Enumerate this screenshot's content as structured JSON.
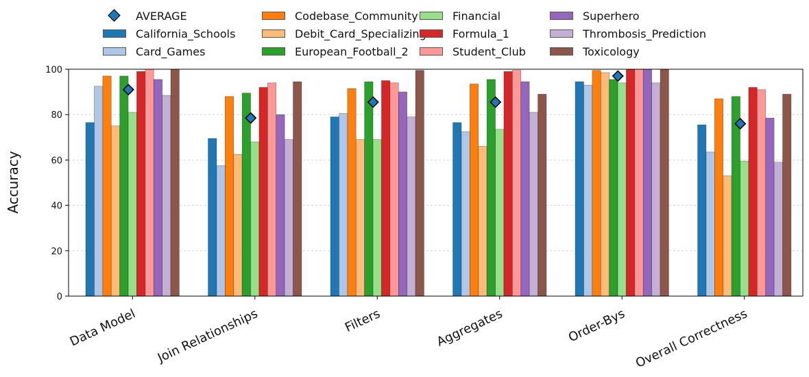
{
  "chart_data": {
    "type": "bar",
    "categories": [
      "Data Model",
      "Join Relationships",
      "Filters",
      "Aggregates",
      "Order-Bys",
      "Overall Correctness"
    ],
    "ylabel": "Accuracy",
    "xlabel": "",
    "ylim": [
      0,
      100
    ],
    "yticks": [
      0,
      20,
      40,
      60,
      80,
      100
    ],
    "grid": "horizontal dashed",
    "legend_position": "top-center",
    "average_label": "AVERAGE",
    "average_color": "#1f77b4",
    "average_values": [
      91,
      78.5,
      85.5,
      85.5,
      97,
      76
    ],
    "series": [
      {
        "name": "California_Schools",
        "color": "#1f77b4",
        "values": [
          76.5,
          69.5,
          79,
          76.5,
          94.5,
          75.5
        ]
      },
      {
        "name": "Card_Games",
        "color": "#aec7e8",
        "values": [
          92.5,
          57.5,
          80.5,
          72.5,
          93,
          63.5
        ]
      },
      {
        "name": "Codebase_Community",
        "color": "#ff7f0e",
        "values": [
          97,
          88,
          91.5,
          93.5,
          99.5,
          87
        ]
      },
      {
        "name": "Debit_Card_Specializing",
        "color": "#ffbb78",
        "values": [
          75,
          62.5,
          69,
          66,
          98.5,
          53
        ]
      },
      {
        "name": "European_Football_2",
        "color": "#2ca02c",
        "values": [
          97,
          89.5,
          94.5,
          95.5,
          95.5,
          88
        ]
      },
      {
        "name": "Financial",
        "color": "#98df8a",
        "values": [
          81,
          68,
          69,
          73.5,
          94,
          59.5
        ]
      },
      {
        "name": "Formula_1",
        "color": "#d62728",
        "values": [
          99,
          92,
          95,
          99,
          100,
          92
        ]
      },
      {
        "name": "Student_Club",
        "color": "#ff9896",
        "values": [
          100,
          94,
          94,
          99.5,
          100,
          91
        ]
      },
      {
        "name": "Superhero",
        "color": "#9467bd",
        "values": [
          95.5,
          80,
          90,
          94.5,
          100,
          78.5
        ]
      },
      {
        "name": "Thrombosis_Prediction",
        "color": "#c5b0d5",
        "values": [
          88.5,
          69,
          79,
          81,
          94,
          59
        ]
      },
      {
        "name": "Toxicology",
        "color": "#8c564b",
        "values": [
          100,
          94.5,
          99.5,
          89,
          100,
          89
        ]
      }
    ]
  }
}
